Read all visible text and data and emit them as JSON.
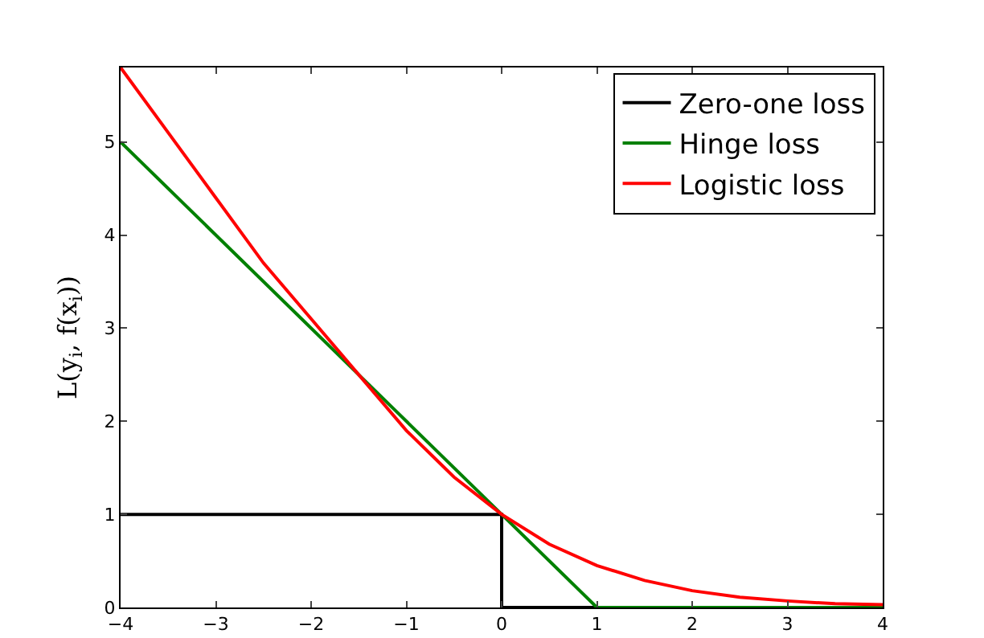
{
  "chart_data": {
    "type": "line",
    "ylabel": "L(y$_{i}$, f(x$_{i}$))",
    "xlim": [
      -4,
      4
    ],
    "xticks": [
      -4,
      -3,
      -2,
      -1,
      0,
      1,
      2,
      3,
      4
    ],
    "ylim": [
      0,
      5.8
    ],
    "yticks": [
      0,
      1,
      2,
      3,
      4,
      5
    ],
    "grid": false,
    "legend": "top right",
    "marker": "none",
    "line_style": "solid",
    "series": [
      {
        "name": "Zero-one loss",
        "color": "#000000",
        "x": [
          -4,
          0,
          0,
          4
        ],
        "values": [
          1,
          1,
          0,
          0
        ]
      },
      {
        "name": "Hinge loss",
        "color": "#008000",
        "x": [
          -4,
          1,
          4
        ],
        "values": [
          5,
          0,
          0
        ]
      },
      {
        "name": "Logistic loss",
        "color": "#ff0000",
        "x": [
          -4,
          -3.5,
          -3,
          -2.5,
          -2,
          -1.5,
          -1,
          -0.5,
          0,
          0.5,
          1,
          1.5,
          2,
          2.5,
          3,
          3.5,
          4
        ],
        "values": [
          5.8,
          5.1,
          4.4,
          3.7,
          3.1,
          2.5,
          1.9,
          1.4,
          1.0,
          0.68,
          0.45,
          0.29,
          0.18,
          0.11,
          0.07,
          0.04,
          0.03
        ]
      }
    ]
  }
}
